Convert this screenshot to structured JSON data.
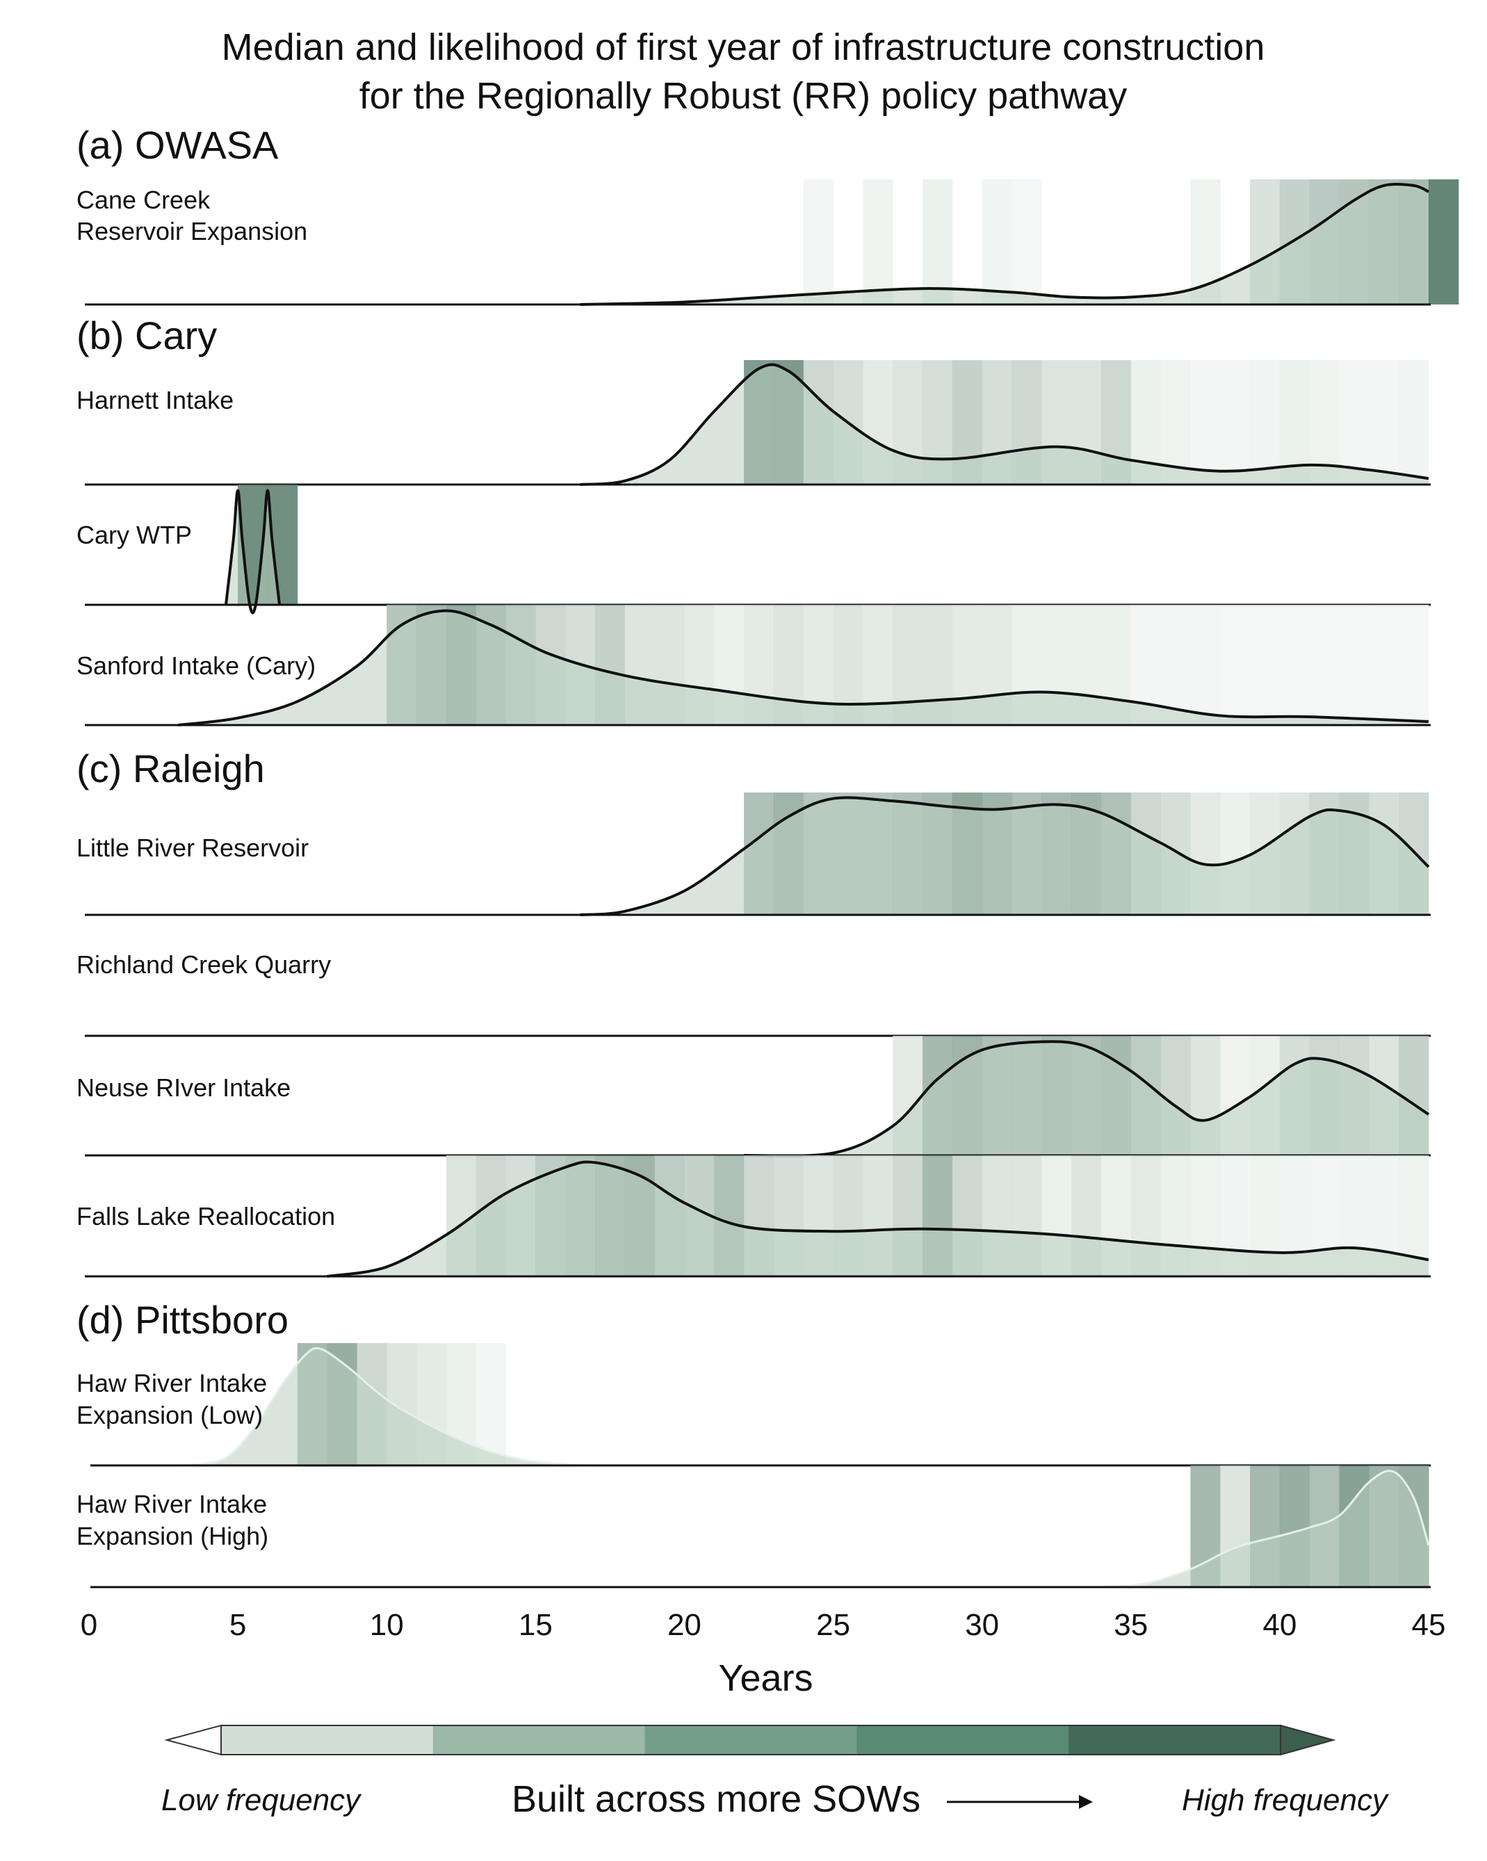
{
  "chart_data": {
    "type": "area",
    "title_lines": [
      "Median and likelihood of first year of infrastructure construction",
      "for the Regionally Robust (RR) policy pathway"
    ],
    "xlabel": "Years",
    "xlim": [
      0,
      45
    ],
    "xticks": [
      0,
      5,
      10,
      15,
      20,
      25,
      30,
      35,
      40,
      45
    ],
    "groups": [
      {
        "label": "(a) OWASA"
      },
      {
        "label": "(b) Cary"
      },
      {
        "label": "(c) Raleigh"
      },
      {
        "label": "(d) Pittsboro"
      }
    ],
    "series": [
      {
        "name_lines": [
          "Cane Creek",
          "Reservoir Expansion"
        ],
        "group": 0,
        "density": [
          [
            16.5,
            0
          ],
          [
            20,
            0.02
          ],
          [
            24,
            0.08
          ],
          [
            28,
            0.13
          ],
          [
            31,
            0.1
          ],
          [
            33,
            0.06
          ],
          [
            35,
            0.06
          ],
          [
            37,
            0.12
          ],
          [
            39,
            0.32
          ],
          [
            41,
            0.6
          ],
          [
            42.5,
            0.85
          ],
          [
            43.5,
            0.97
          ],
          [
            44.5,
            0.97
          ],
          [
            45,
            0.92
          ]
        ],
        "frequency": [
          [
            24,
            0.05
          ],
          [
            26,
            0.07
          ],
          [
            28,
            0.1
          ],
          [
            30,
            0.06
          ],
          [
            31,
            0.04
          ],
          [
            37,
            0.08
          ],
          [
            39,
            0.22
          ],
          [
            40,
            0.35
          ],
          [
            41,
            0.42
          ],
          [
            42,
            0.45
          ],
          [
            43,
            0.5
          ],
          [
            44,
            0.55
          ],
          [
            45,
            0.98
          ]
        ],
        "outline": true
      },
      {
        "name_lines": [
          "Harnett Intake"
        ],
        "group": 1,
        "density": [
          [
            16.5,
            0
          ],
          [
            18,
            0.03
          ],
          [
            19.5,
            0.2
          ],
          [
            21,
            0.6
          ],
          [
            22.5,
            0.95
          ],
          [
            23.5,
            0.93
          ],
          [
            25,
            0.6
          ],
          [
            27,
            0.28
          ],
          [
            29,
            0.21
          ],
          [
            32.5,
            0.31
          ],
          [
            35,
            0.2
          ],
          [
            38,
            0.11
          ],
          [
            41,
            0.16
          ],
          [
            43,
            0.12
          ],
          [
            45,
            0.05
          ]
        ],
        "frequency": [
          [
            22,
            0.8
          ],
          [
            23,
            0.82
          ],
          [
            24,
            0.3
          ],
          [
            25,
            0.25
          ],
          [
            26,
            0.15
          ],
          [
            27,
            0.2
          ],
          [
            28,
            0.25
          ],
          [
            29,
            0.35
          ],
          [
            30,
            0.25
          ],
          [
            31,
            0.3
          ],
          [
            32,
            0.2
          ],
          [
            33,
            0.2
          ],
          [
            34,
            0.3
          ],
          [
            35,
            0.1
          ],
          [
            36,
            0.08
          ],
          [
            37,
            0.05
          ],
          [
            38,
            0.05
          ],
          [
            39,
            0.06
          ],
          [
            40,
            0.1
          ],
          [
            41,
            0.08
          ],
          [
            42,
            0.05
          ],
          [
            43,
            0.05
          ],
          [
            44,
            0.06
          ]
        ],
        "outline": true
      },
      {
        "name_lines": [
          "Cary WTP"
        ],
        "group": 1,
        "density": [
          [
            4.6,
            0
          ],
          [
            4.85,
            0.55
          ],
          [
            5,
            0.97
          ],
          [
            5.15,
            0.55
          ],
          [
            5.4,
            0
          ],
          [
            5.6,
            0
          ],
          [
            5.85,
            0.55
          ],
          [
            6,
            0.97
          ],
          [
            6.15,
            0.55
          ],
          [
            6.4,
            0
          ]
        ],
        "frequency": [
          [
            5,
            0.9
          ],
          [
            6,
            0.9
          ]
        ],
        "outline": true
      },
      {
        "name_lines": [
          "Sanford Intake (Cary)"
        ],
        "group": 1,
        "density": [
          [
            3,
            0
          ],
          [
            5,
            0.06
          ],
          [
            7,
            0.2
          ],
          [
            9,
            0.5
          ],
          [
            10.5,
            0.85
          ],
          [
            12,
            0.97
          ],
          [
            13.5,
            0.85
          ],
          [
            15.5,
            0.6
          ],
          [
            18,
            0.42
          ],
          [
            21,
            0.3
          ],
          [
            25,
            0.18
          ],
          [
            29,
            0.22
          ],
          [
            32,
            0.28
          ],
          [
            35,
            0.2
          ],
          [
            38,
            0.08
          ],
          [
            41,
            0.07
          ],
          [
            45,
            0.03
          ]
        ],
        "frequency": [
          [
            10,
            0.45
          ],
          [
            11,
            0.55
          ],
          [
            12,
            0.65
          ],
          [
            13,
            0.5
          ],
          [
            14,
            0.4
          ],
          [
            15,
            0.3
          ],
          [
            16,
            0.25
          ],
          [
            17,
            0.35
          ],
          [
            18,
            0.2
          ],
          [
            19,
            0.2
          ],
          [
            20,
            0.15
          ],
          [
            21,
            0.1
          ],
          [
            22,
            0.15
          ],
          [
            23,
            0.2
          ],
          [
            24,
            0.15
          ],
          [
            25,
            0.2
          ],
          [
            26,
            0.15
          ],
          [
            27,
            0.2
          ],
          [
            28,
            0.2
          ],
          [
            29,
            0.15
          ],
          [
            30,
            0.15
          ],
          [
            31,
            0.1
          ],
          [
            32,
            0.1
          ],
          [
            33,
            0.1
          ],
          [
            34,
            0.1
          ],
          [
            35,
            0.05
          ],
          [
            36,
            0.05
          ],
          [
            37,
            0.05
          ],
          [
            38,
            0.04
          ],
          [
            39,
            0.04
          ],
          [
            40,
            0.04
          ],
          [
            41,
            0.04
          ],
          [
            42,
            0.04
          ],
          [
            43,
            0.04
          ],
          [
            44,
            0.04
          ]
        ],
        "outline": true
      },
      {
        "name_lines": [
          "Little River Reservoir"
        ],
        "group": 2,
        "density": [
          [
            16.5,
            0
          ],
          [
            18,
            0.03
          ],
          [
            20,
            0.2
          ],
          [
            22,
            0.55
          ],
          [
            23.5,
            0.82
          ],
          [
            25,
            0.97
          ],
          [
            27,
            0.95
          ],
          [
            29,
            0.9
          ],
          [
            30.5,
            0.88
          ],
          [
            32.5,
            0.92
          ],
          [
            34,
            0.85
          ],
          [
            36,
            0.6
          ],
          [
            37.5,
            0.42
          ],
          [
            39,
            0.5
          ],
          [
            41,
            0.82
          ],
          [
            42,
            0.87
          ],
          [
            43.5,
            0.75
          ],
          [
            45,
            0.4
          ]
        ],
        "frequency": [
          [
            22,
            0.5
          ],
          [
            23,
            0.6
          ],
          [
            24,
            0.45
          ],
          [
            25,
            0.45
          ],
          [
            26,
            0.45
          ],
          [
            27,
            0.5
          ],
          [
            28,
            0.55
          ],
          [
            29,
            0.7
          ],
          [
            30,
            0.6
          ],
          [
            31,
            0.5
          ],
          [
            32,
            0.55
          ],
          [
            33,
            0.6
          ],
          [
            34,
            0.5
          ],
          [
            35,
            0.3
          ],
          [
            36,
            0.25
          ],
          [
            37,
            0.15
          ],
          [
            38,
            0.1
          ],
          [
            39,
            0.15
          ],
          [
            40,
            0.2
          ],
          [
            41,
            0.3
          ],
          [
            42,
            0.35
          ],
          [
            43,
            0.25
          ],
          [
            44,
            0.3
          ]
        ],
        "outline": true
      },
      {
        "name_lines": [
          "Richland Creek Quarry"
        ],
        "group": 2,
        "density": [],
        "frequency": [],
        "outline": false
      },
      {
        "name_lines": [
          "Neuse RIver Intake"
        ],
        "group": 2,
        "density": [
          [
            22,
            0
          ],
          [
            25,
            0.02
          ],
          [
            27,
            0.25
          ],
          [
            28.5,
            0.65
          ],
          [
            30,
            0.9
          ],
          [
            32,
            0.97
          ],
          [
            33.5,
            0.93
          ],
          [
            35,
            0.72
          ],
          [
            36.5,
            0.42
          ],
          [
            37.5,
            0.3
          ],
          [
            39,
            0.5
          ],
          [
            40.5,
            0.78
          ],
          [
            41.5,
            0.82
          ],
          [
            43,
            0.68
          ],
          [
            45,
            0.35
          ]
        ],
        "frequency": [
          [
            27,
            0.15
          ],
          [
            28,
            0.55
          ],
          [
            29,
            0.6
          ],
          [
            30,
            0.5
          ],
          [
            31,
            0.5
          ],
          [
            32,
            0.55
          ],
          [
            33,
            0.5
          ],
          [
            34,
            0.55
          ],
          [
            35,
            0.4
          ],
          [
            36,
            0.3
          ],
          [
            37,
            0.2
          ],
          [
            38,
            0.08
          ],
          [
            39,
            0.1
          ],
          [
            40,
            0.25
          ],
          [
            41,
            0.3
          ],
          [
            42,
            0.28
          ],
          [
            43,
            0.2
          ],
          [
            44,
            0.35
          ]
        ],
        "outline": true
      },
      {
        "name_lines": [
          "Falls Lake Reallocation"
        ],
        "group": 2,
        "density": [
          [
            8,
            0
          ],
          [
            10,
            0.08
          ],
          [
            12,
            0.35
          ],
          [
            14,
            0.7
          ],
          [
            16,
            0.92
          ],
          [
            17,
            0.96
          ],
          [
            18.5,
            0.85
          ],
          [
            20,
            0.62
          ],
          [
            22,
            0.42
          ],
          [
            25,
            0.38
          ],
          [
            28,
            0.4
          ],
          [
            32,
            0.36
          ],
          [
            36,
            0.27
          ],
          [
            40,
            0.2
          ],
          [
            42.5,
            0.24
          ],
          [
            45,
            0.14
          ]
        ],
        "frequency": [
          [
            12,
            0.2
          ],
          [
            13,
            0.3
          ],
          [
            14,
            0.25
          ],
          [
            15,
            0.4
          ],
          [
            16,
            0.45
          ],
          [
            17,
            0.55
          ],
          [
            18,
            0.6
          ],
          [
            19,
            0.4
          ],
          [
            20,
            0.35
          ],
          [
            21,
            0.5
          ],
          [
            22,
            0.3
          ],
          [
            23,
            0.25
          ],
          [
            24,
            0.2
          ],
          [
            25,
            0.25
          ],
          [
            26,
            0.2
          ],
          [
            27,
            0.3
          ],
          [
            28,
            0.55
          ],
          [
            29,
            0.3
          ],
          [
            30,
            0.2
          ],
          [
            31,
            0.2
          ],
          [
            32,
            0.1
          ],
          [
            33,
            0.2
          ],
          [
            34,
            0.1
          ],
          [
            35,
            0.15
          ],
          [
            36,
            0.1
          ],
          [
            37,
            0.08
          ],
          [
            38,
            0.06
          ],
          [
            39,
            0.07
          ],
          [
            40,
            0.06
          ],
          [
            41,
            0.05
          ],
          [
            42,
            0.06
          ],
          [
            43,
            0.06
          ],
          [
            44,
            0.08
          ]
        ],
        "outline": true
      },
      {
        "name_lines": [
          "Haw River Intake",
          "Expansion (Low)"
        ],
        "group": 3,
        "density": [
          [
            3,
            0
          ],
          [
            4.5,
            0.05
          ],
          [
            5.5,
            0.3
          ],
          [
            6.5,
            0.68
          ],
          [
            7.3,
            0.93
          ],
          [
            7.8,
            0.97
          ],
          [
            8.7,
            0.82
          ],
          [
            10,
            0.55
          ],
          [
            11.5,
            0.33
          ],
          [
            13,
            0.16
          ],
          [
            14.5,
            0.05
          ],
          [
            16,
            0.01
          ],
          [
            17,
            0
          ]
        ],
        "frequency": [
          [
            7,
            0.55
          ],
          [
            8,
            0.65
          ],
          [
            9,
            0.3
          ],
          [
            10,
            0.2
          ],
          [
            11,
            0.15
          ],
          [
            12,
            0.1
          ],
          [
            13,
            0.05
          ]
        ],
        "outline": false
      },
      {
        "name_lines": [
          "Haw River Intake",
          "Expansion (High)"
        ],
        "group": 3,
        "density": [
          [
            34,
            0
          ],
          [
            35.5,
            0.03
          ],
          [
            37,
            0.15
          ],
          [
            38.5,
            0.33
          ],
          [
            40,
            0.43
          ],
          [
            41,
            0.5
          ],
          [
            42,
            0.6
          ],
          [
            43,
            0.88
          ],
          [
            43.8,
            0.97
          ],
          [
            44.5,
            0.75
          ],
          [
            45,
            0.35
          ]
        ],
        "frequency": [
          [
            37,
            0.55
          ],
          [
            38,
            0.2
          ],
          [
            39,
            0.55
          ],
          [
            40,
            0.65
          ],
          [
            41,
            0.5
          ],
          [
            42,
            0.75
          ],
          [
            43,
            0.6
          ],
          [
            44,
            0.65
          ]
        ],
        "outline": false
      }
    ],
    "legend": {
      "low_label": "Low frequency",
      "high_label": "High frequency",
      "main_label": "Built across more SOWs",
      "colors": [
        "#d2dfd6",
        "#9bb9a6",
        "#739e86",
        "#5a8a72",
        "#436a58"
      ]
    }
  }
}
